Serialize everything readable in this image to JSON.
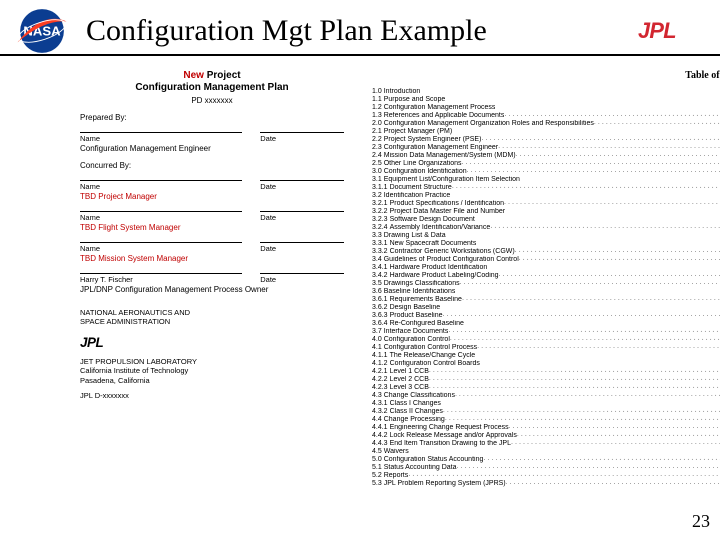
{
  "header": {
    "title": "Configuration Mgt Plan Example",
    "title_color": "#000000",
    "title_fontsize": 30
  },
  "left": {
    "title_prefix": "New",
    "title_rest": " Project",
    "title_line2": "Configuration Management Plan",
    "subtitle": "PD xxxxxxx",
    "prepared_by_label": "Prepared By:",
    "concurred_by_label": "Concurred By:",
    "name_label": "Name",
    "date_label": "Date",
    "roles": {
      "cm_engineer": "Configuration Management Engineer",
      "pm": "TBD Project Manager",
      "fsm": "TBD Flight System Manager",
      "msm": "TBD Mission System Manager",
      "owner_name": "Harry T. Fischer",
      "owner_role": "JPL/DNP Configuration Management Process Owner"
    },
    "footer_line1": "NATIONAL AERONAUTICS AND",
    "footer_line2": "SPACE ADMINISTRATION",
    "lab_line1": "JET PROPULSION LABORATORY",
    "lab_line2": "California Institute of Technology",
    "lab_line3": "Pasadena, California",
    "date_stamp": "JPL D-xxxxxxx"
  },
  "right": {
    "toc_title": "Table of Contents",
    "items": [
      {
        "n": "1.0",
        "t": "Introduction",
        "d": false
      },
      {
        "n": "1.1",
        "t": "Purpose and Scope",
        "d": false
      },
      {
        "n": "1.2",
        "t": "Configuration Management Process",
        "d": false
      },
      {
        "n": "1.3",
        "t": "References and Applicable Documents",
        "d": true
      },
      {
        "n": "2.0",
        "t": "Configuration Management Organization Roles and Responsibilities",
        "d": true
      },
      {
        "n": "2.1",
        "t": "Project Manager (PM)",
        "d": false
      },
      {
        "n": "2.2",
        "t": "Project System Engineer (PSE)",
        "d": true
      },
      {
        "n": "2.3",
        "t": "Configuration Management Engineer",
        "d": true
      },
      {
        "n": "2.4",
        "t": "Mission Data Management/System (MDM)",
        "d": true
      },
      {
        "n": "2.5",
        "t": "Other Line Organizations",
        "d": true
      },
      {
        "n": "3.0",
        "t": "Configuration Identification",
        "d": true
      },
      {
        "n": "3.1",
        "t": "Equipment List/Configuration Item Selection",
        "d": false
      },
      {
        "n": "3.1.1",
        "t": "Document Structure",
        "d": true
      },
      {
        "n": "3.2",
        "t": "Identification Practice",
        "d": false
      },
      {
        "n": "3.2.1",
        "t": "Product Specifications / Identification",
        "d": true
      },
      {
        "n": "3.2.2",
        "t": "Project Data Master File and Number",
        "d": false
      },
      {
        "n": "3.2.3",
        "t": "Software Design Document",
        "d": false
      },
      {
        "n": "3.2.4",
        "t": "Assembly Identification/Variance",
        "d": true
      },
      {
        "n": "3.3",
        "t": "Drawing List & Data",
        "d": false
      },
      {
        "n": "3.3.1",
        "t": "New Spacecraft Documents",
        "d": false
      },
      {
        "n": "3.3.2",
        "t": "Contractor Generic Workstations (CGW)",
        "d": true
      },
      {
        "n": "3.4",
        "t": "Guidelines of Product Configuration Control",
        "d": true
      },
      {
        "n": "3.4.1",
        "t": "Hardware Product Identification",
        "d": false
      },
      {
        "n": "3.4.2",
        "t": "Hardware Product Labeling/Coding",
        "d": true
      },
      {
        "n": "3.5",
        "t": "Drawings Classifications",
        "d": true
      },
      {
        "n": "3.6",
        "t": "Baseline Identifications",
        "d": false
      },
      {
        "n": "3.6.1",
        "t": "Requirements Baseline",
        "d": true
      },
      {
        "n": "3.6.2",
        "t": "Design Baseline",
        "d": false
      },
      {
        "n": "3.6.3",
        "t": "Product Baseline",
        "d": true
      },
      {
        "n": "3.6.4",
        "t": "Re-Configured Baseline",
        "d": false
      },
      {
        "n": "3.7",
        "t": "Interface Documents",
        "d": true
      },
      {
        "n": "4.0",
        "t": "Configuration Control",
        "d": true
      },
      {
        "n": "4.1",
        "t": "Configuration Control Process",
        "d": true
      },
      {
        "n": "4.1.1",
        "t": "The Release/Change Cycle",
        "d": false
      },
      {
        "n": "4.1.2",
        "t": "Configuration Control Boards",
        "d": false
      },
      {
        "n": "4.2.1",
        "t": "Level 1 CCB",
        "d": true
      },
      {
        "n": "4.2.2",
        "t": "Level 2 CCB",
        "d": true
      },
      {
        "n": "4.2.3",
        "t": "Level 3 CCB",
        "d": true
      },
      {
        "n": "4.3",
        "t": "Change Classifications",
        "d": true
      },
      {
        "n": "4.3.1",
        "t": "Class I Changes",
        "d": false
      },
      {
        "n": "4.3.2",
        "t": "Class II Changes",
        "d": true
      },
      {
        "n": "4.4",
        "t": "Change Processing",
        "d": true
      },
      {
        "n": "4.4.1",
        "t": "Engineering Change Request Process",
        "d": true
      },
      {
        "n": "4.4.2",
        "t": "Lock Release Message and/or Approvals",
        "d": true
      },
      {
        "n": "4.4.3",
        "t": "End Item Transition Drawing to the JPL",
        "d": true
      },
      {
        "n": "4.5",
        "t": "Waivers",
        "d": false
      },
      {
        "n": "5.0",
        "t": "Configuration Status Accounting",
        "d": true
      },
      {
        "n": "5.1",
        "t": "Status Accounting Data",
        "d": true
      },
      {
        "n": "5.2",
        "t": "Reports",
        "d": true
      },
      {
        "n": "5.3",
        "t": "JPL Problem Reporting System (JPRS)",
        "d": true
      }
    ]
  },
  "page_number": "23",
  "colors": {
    "red": "#c00000",
    "nasa_blue": "#0b3d91",
    "nasa_red": "#fc3d21",
    "jpl_red": "#d22630",
    "rule": "#000000",
    "bg": "#ffffff"
  }
}
